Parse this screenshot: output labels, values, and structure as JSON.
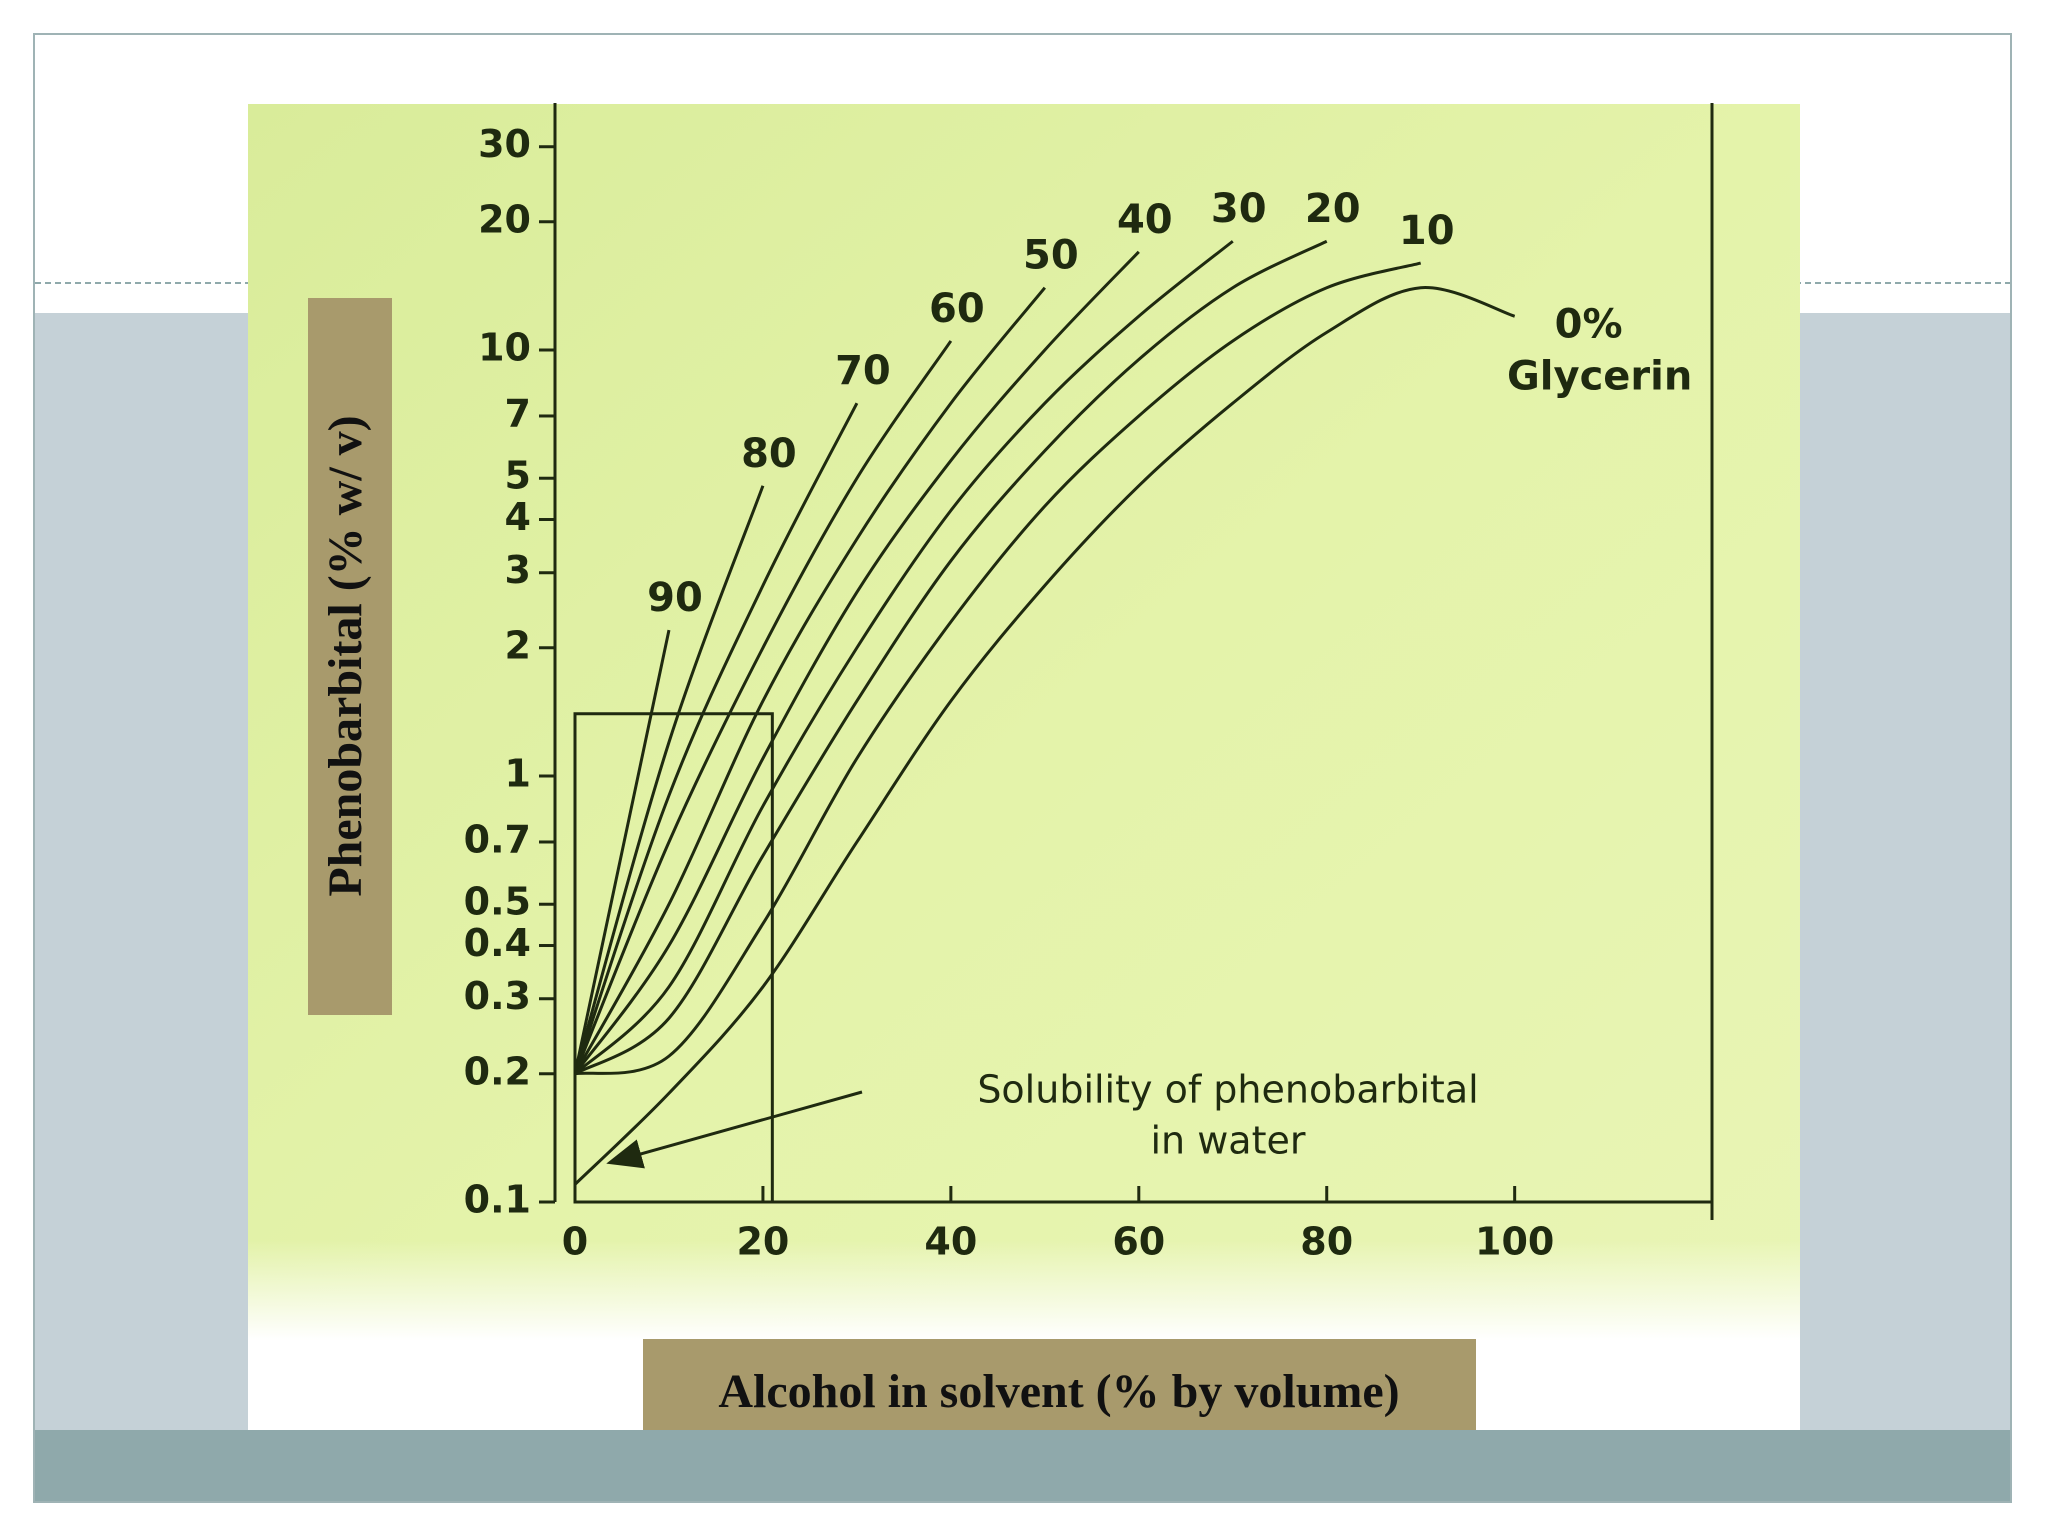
{
  "chart_data": {
    "type": "line",
    "x_label": "Alcohol in solvent (% by volume)",
    "y_label": "Phenobarbital (% w/ v)",
    "x": [
      0,
      10,
      20,
      30,
      40,
      50,
      60,
      70,
      80,
      90,
      100
    ],
    "color": "#1f2a10",
    "series": [
      {
        "name": "90",
        "values": [
          0.2,
          2.2,
          null,
          null,
          null,
          null,
          null,
          null,
          null,
          null,
          null
        ]
      },
      {
        "name": "80",
        "values": [
          0.2,
          1.2,
          4.8,
          null,
          null,
          null,
          null,
          null,
          null,
          null,
          null
        ]
      },
      {
        "name": "70",
        "values": [
          0.2,
          0.9,
          2.8,
          7.5,
          null,
          null,
          null,
          null,
          null,
          null,
          null
        ]
      },
      {
        "name": "60",
        "values": [
          0.2,
          0.7,
          2.0,
          5,
          10.5,
          null,
          null,
          null,
          null,
          null,
          null
        ]
      },
      {
        "name": "50",
        "values": [
          0.2,
          0.5,
          1.5,
          3.6,
          7.5,
          14,
          null,
          null,
          null,
          null,
          null
        ]
      },
      {
        "name": "40",
        "values": [
          0.2,
          0.4,
          1.1,
          2.7,
          5.5,
          10,
          17,
          null,
          null,
          null,
          null
        ]
      },
      {
        "name": "30",
        "values": [
          0.2,
          0.32,
          0.85,
          2,
          4.2,
          7.5,
          12,
          18,
          null,
          null,
          null
        ]
      },
      {
        "name": "20",
        "values": [
          0.2,
          0.27,
          0.65,
          1.5,
          3.2,
          5.8,
          9.5,
          14,
          18,
          null,
          null
        ]
      },
      {
        "name": "10",
        "values": [
          0.2,
          0.22,
          0.45,
          1.1,
          2.3,
          4.3,
          7,
          10.5,
          14,
          16,
          null
        ]
      },
      {
        "name": "0%",
        "values": [
          0.11,
          0.18,
          0.32,
          0.7,
          1.5,
          2.8,
          4.8,
          7.5,
          11,
          14,
          12
        ]
      }
    ],
    "series_note": "Glycerin",
    "annotation": [
      "Solubility of phenobarbital",
      "in water"
    ],
    "highlight_box": {
      "xlim": [
        0,
        21
      ],
      "ylim": [
        0.1,
        1.4
      ]
    },
    "xlim": [
      0,
      121
    ],
    "xticks": [
      0,
      20,
      40,
      60,
      80,
      100
    ],
    "ylim": [
      0.1,
      38
    ],
    "log_y": true,
    "yticks": [
      0.1,
      0.2,
      0.3,
      0.4,
      0.5,
      0.7,
      1,
      2,
      3,
      4,
      5,
      7,
      10,
      20,
      30
    ]
  }
}
